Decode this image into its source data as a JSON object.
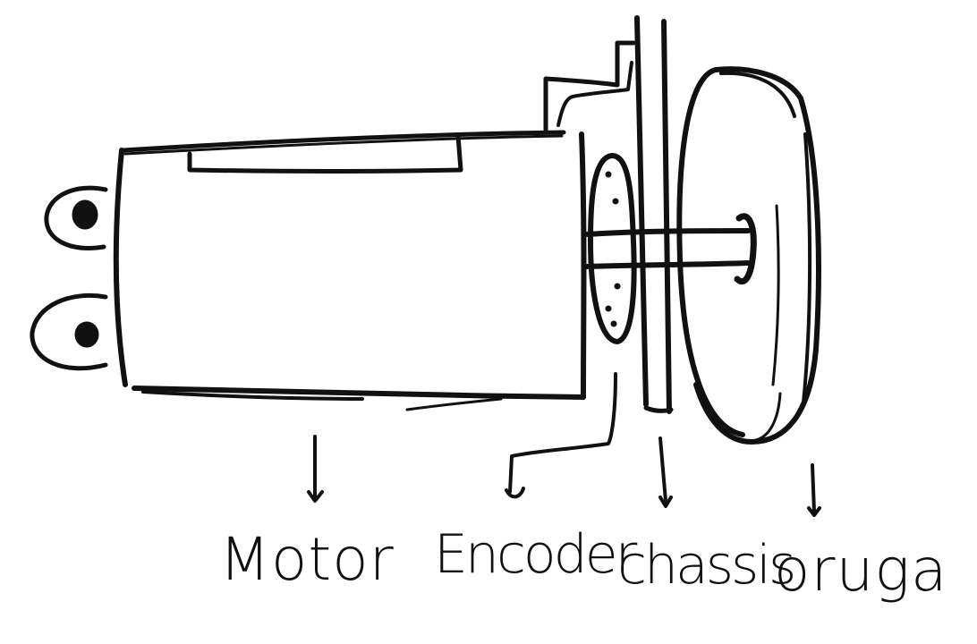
{
  "diagram": {
    "ink_color": "#111111",
    "background": "#ffffff",
    "parts": [
      {
        "id": "motor",
        "label": "Motor"
      },
      {
        "id": "encoder",
        "label": "Encoder"
      },
      {
        "id": "chassis",
        "label": "chassis"
      },
      {
        "id": "oruga",
        "label": "oruga"
      }
    ]
  }
}
